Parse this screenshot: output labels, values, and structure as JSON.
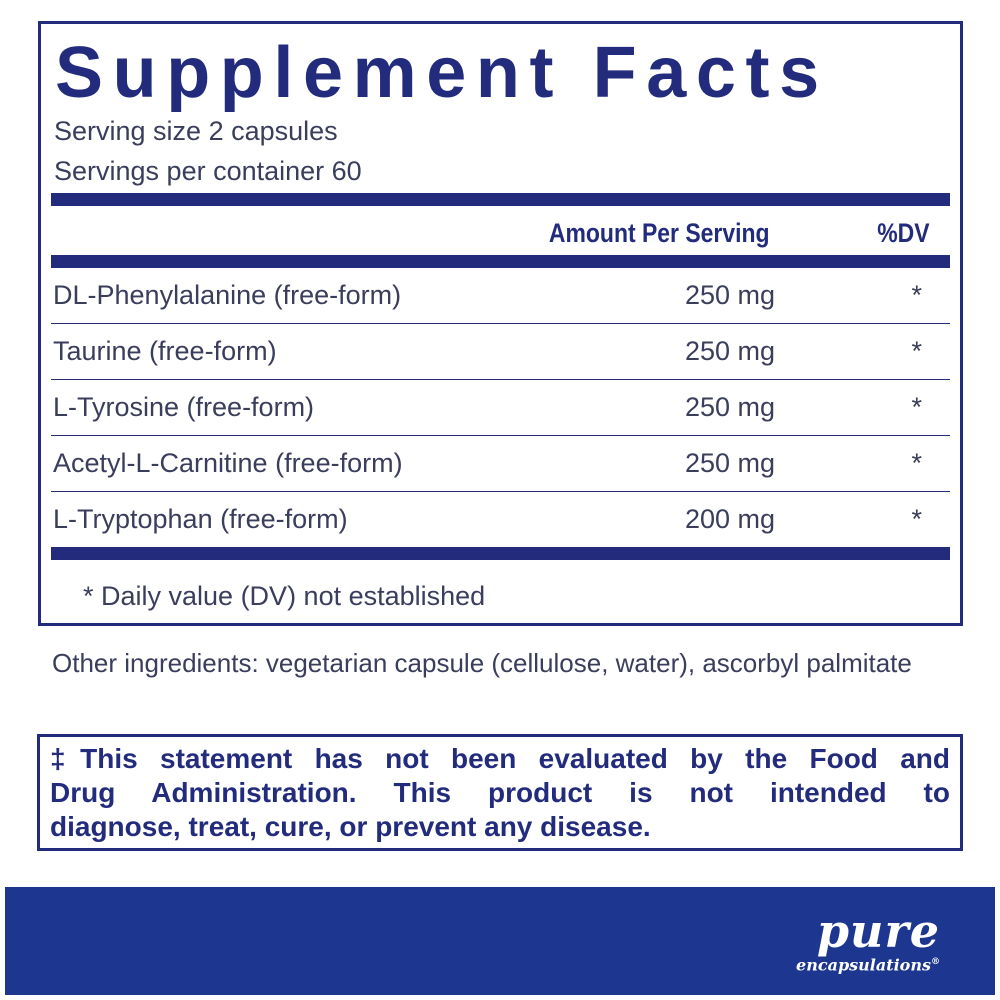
{
  "title": "Supplement Facts",
  "serving_size": "Serving size  2 capsules",
  "servings_per_container": "Servings per container  60",
  "headers": {
    "amount": "Amount Per Serving",
    "dv": "%DV"
  },
  "rows": [
    {
      "name": "DL-Phenylalanine (free-form)",
      "amount": "250 mg",
      "dv": "*"
    },
    {
      "name": "Taurine (free-form)",
      "amount": "250 mg",
      "dv": "*"
    },
    {
      "name": "L-Tyrosine (free-form)",
      "amount": "250 mg",
      "dv": "*"
    },
    {
      "name": "Acetyl-L-Carnitine (free-form)",
      "amount": "250 mg",
      "dv": "*"
    },
    {
      "name": "L-Tryptophan (free-form)",
      "amount": "200 mg",
      "dv": "*"
    }
  ],
  "footnote": "* Daily value (DV) not established",
  "other_ingredients": "Other ingredients: vegetarian capsule (cellulose, water), ascorbyl palmitate",
  "disclaimer": {
    "line1": "‡This statement has not been evaluated by the Food and",
    "line2": "Drug Administration. This product is not intended to",
    "line3": "diagnose, treat, cure, or prevent any disease."
  },
  "brand": {
    "name": "pure",
    "sub": "encapsulations",
    "mark": "®"
  },
  "colors": {
    "navy": "#232c7c",
    "banner": "#1d3790"
  }
}
